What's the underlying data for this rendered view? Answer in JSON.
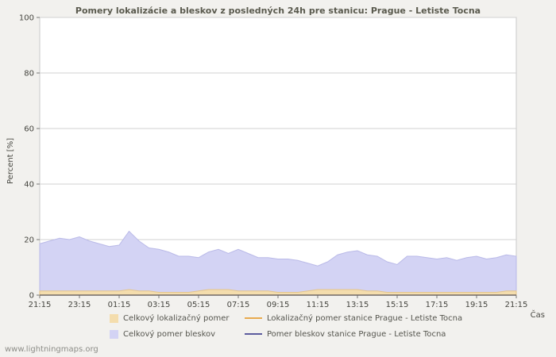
{
  "page": {
    "watermark": "www.lightningmaps.org"
  },
  "chart_data": {
    "type": "area",
    "title": "Pomery lokalizácie a bleskov z posledných 24h pre stanicu: Prague - Letiste Tocna",
    "ylabel": "Percent  [%]",
    "xlabel": "Čas",
    "ylim": [
      0,
      100
    ],
    "yticks": [
      0,
      20,
      40,
      60,
      80,
      100
    ],
    "xtick_labels": [
      "21:15",
      "23:15",
      "01:15",
      "03:15",
      "05:15",
      "07:15",
      "09:15",
      "11:15",
      "13:15",
      "15:15",
      "17:15",
      "19:15",
      "21:15"
    ],
    "grid": true,
    "legend_position": "bottom",
    "x_step_minutes": 30,
    "series": [
      {
        "name": "Celkový lokalizačný pomer",
        "render": "area",
        "color": "#f4ddad",
        "edge": "#e3c48c",
        "values": [
          1.5,
          1.5,
          1.5,
          1.5,
          1.5,
          1.5,
          1.5,
          1.5,
          1.5,
          2,
          1.5,
          1.5,
          1,
          1,
          1,
          1,
          1.5,
          2,
          2,
          2,
          1.5,
          1.5,
          1.5,
          1.5,
          1,
          1,
          1,
          1.5,
          2,
          2,
          2,
          2,
          2,
          1.5,
          1.5,
          1,
          1,
          1,
          1,
          1,
          1,
          1,
          1,
          1,
          1,
          1,
          1,
          1.5,
          1.5
        ]
      },
      {
        "name": "Lokalizačný pomer stanice Prague - Letiste Tocna",
        "render": "line",
        "color": "#e8aa4e",
        "values": [
          0,
          0,
          0,
          0,
          0,
          0,
          0,
          0,
          0,
          0,
          0,
          0,
          0,
          0,
          0,
          0,
          0,
          0,
          0,
          0,
          0,
          0,
          0,
          0,
          0,
          0,
          0,
          0,
          0,
          0,
          0,
          0,
          0,
          0,
          0,
          0,
          0,
          0,
          0,
          0,
          0,
          0,
          0,
          0,
          0,
          0,
          0,
          0,
          0
        ]
      },
      {
        "name": "Celkový pomer bleskov",
        "render": "area",
        "color": "#d3d3f4",
        "edge": "#babae8",
        "values": [
          18.5,
          19.5,
          20.5,
          20,
          21,
          19.5,
          18.5,
          17.5,
          18,
          23,
          19.5,
          17,
          16.5,
          15.5,
          14,
          14,
          13.5,
          15.5,
          16.5,
          15,
          16.5,
          15,
          13.5,
          13.5,
          13,
          13,
          12.5,
          11.5,
          10.5,
          12,
          14.5,
          15.5,
          16,
          14.5,
          14,
          12,
          11,
          14,
          14,
          13.5,
          13,
          13.5,
          12.5,
          13.5,
          14,
          13,
          13.5,
          14.5,
          14
        ]
      },
      {
        "name": "Pomer bleskov stanice Prague - Letiste Tocna",
        "render": "line",
        "color": "#5c5c9e",
        "values": [
          0,
          0,
          0,
          0,
          0,
          0,
          0,
          0,
          0,
          0,
          0,
          0,
          0,
          0,
          0,
          0,
          0,
          0,
          0,
          0,
          0,
          0,
          0,
          0,
          0,
          0,
          0,
          0,
          0,
          0,
          0,
          0,
          0,
          0,
          0,
          0,
          0,
          0,
          0,
          0,
          0,
          0,
          0,
          0,
          0,
          0,
          0,
          0,
          0
        ]
      }
    ]
  }
}
